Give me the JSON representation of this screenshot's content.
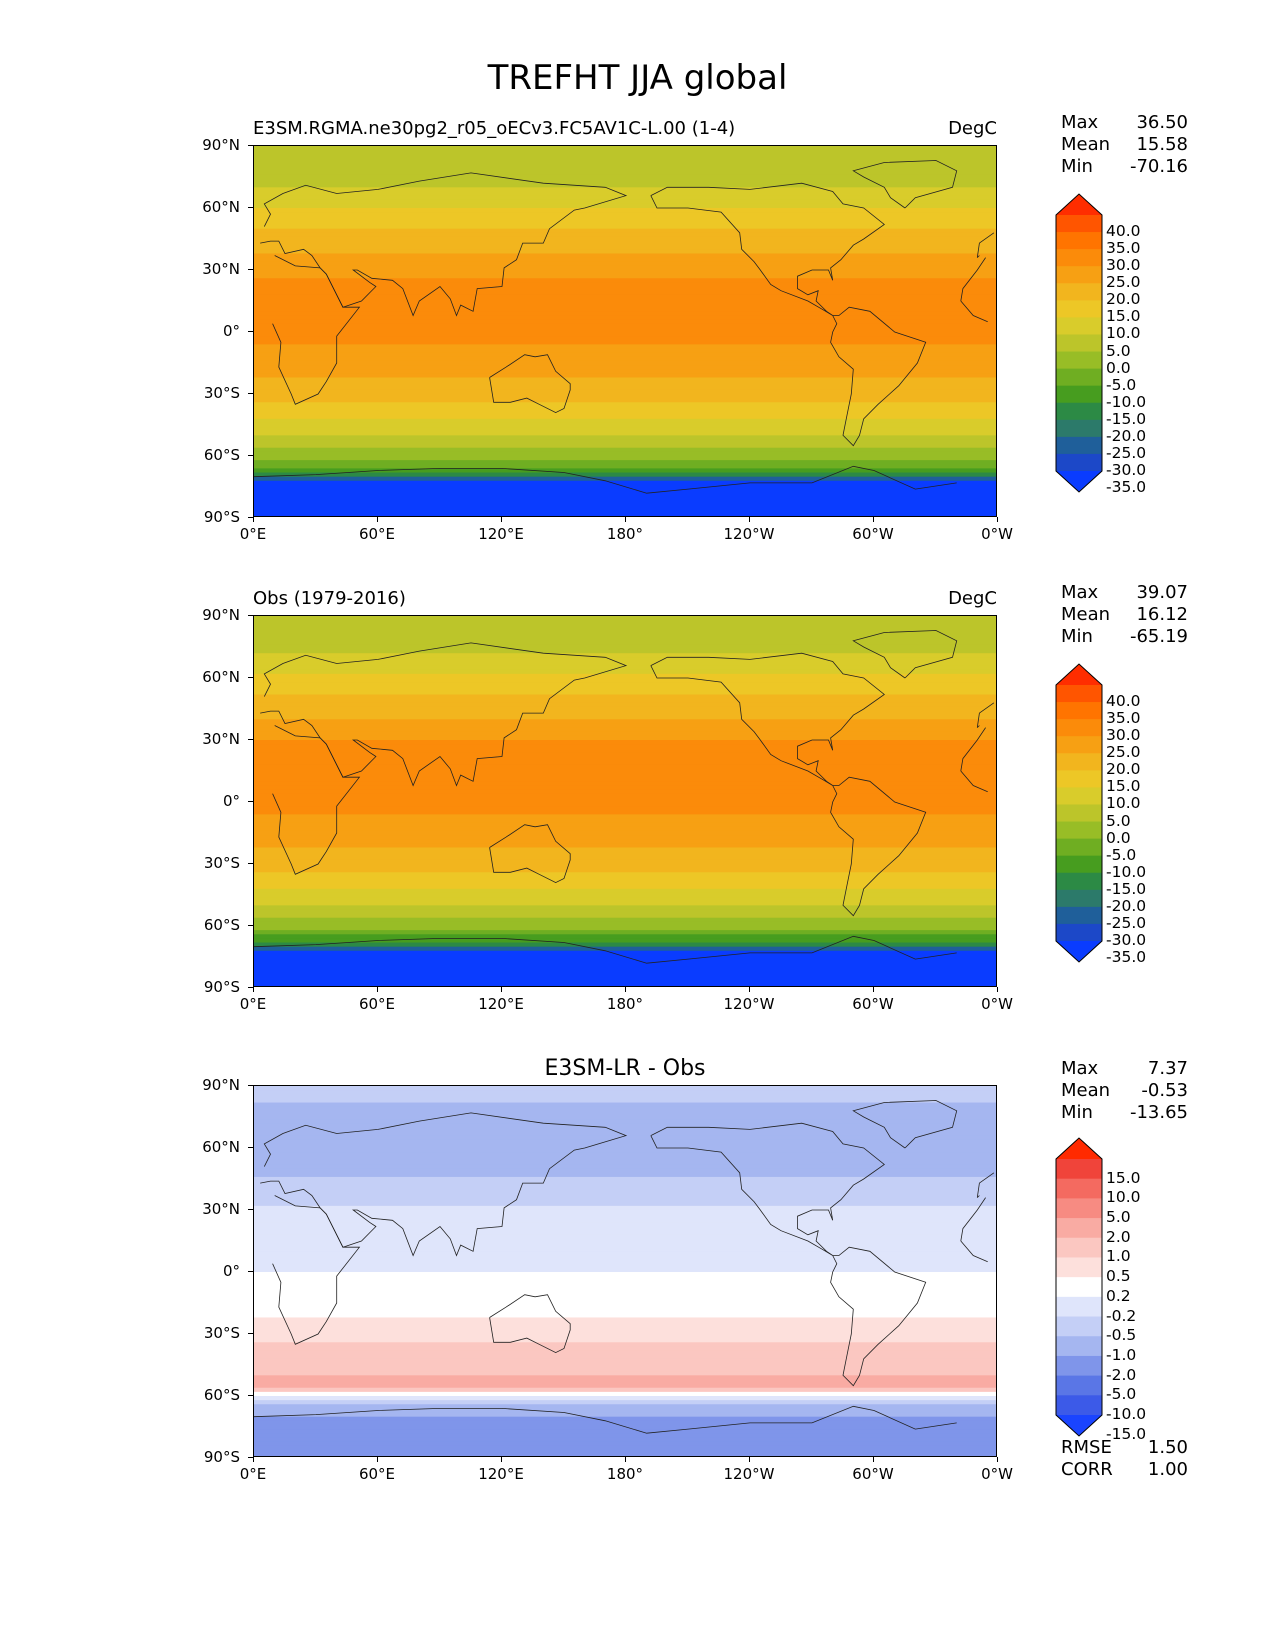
{
  "figure_title": "TREFHT JJA global",
  "chart_data": [
    {
      "type": "heatmap",
      "title_left": "E3SM.RGMA.ne30pg2_r05_oECv3.FC5AV1C-L.00 (1-4)",
      "title_right": "DegC",
      "xticks": [
        "0°E",
        "60°E",
        "120°E",
        "180°",
        "120°W",
        "60°W",
        "0°W"
      ],
      "yticks": [
        "90°N",
        "60°N",
        "30°N",
        "0°",
        "30°S",
        "60°S",
        "90°S"
      ],
      "xlim": [
        0,
        360
      ],
      "ylim": [
        -90,
        90
      ],
      "stats": {
        "max_label": "Max",
        "max": "36.50",
        "mean_label": "Mean",
        "mean": "15.58",
        "min_label": "Min",
        "min": "-70.16"
      },
      "colorbar_levels": [
        "40.0",
        "35.0",
        "30.0",
        "25.0",
        "20.0",
        "15.0",
        "10.0",
        "5.0",
        "0.0",
        "-5.0",
        "-10.0",
        "-15.0",
        "-20.0",
        "-25.0",
        "-30.0",
        "-35.0"
      ],
      "colorbar_colors": [
        "#ff2d00",
        "#ff5500",
        "#ff7400",
        "#fb8b0a",
        "#f7a013",
        "#f2b51e",
        "#edc726",
        "#d9cc2b",
        "#bcc52a",
        "#98bd26",
        "#6fae22",
        "#479d1f",
        "#2c8a45",
        "#2c7a6a",
        "#1f5f9a",
        "#1c48c8",
        "#0a3cff"
      ],
      "colorbar_extend": "both",
      "zonal_profile": [
        {
          "lat": 90,
          "value": 0
        },
        {
          "lat": 75,
          "value": 2
        },
        {
          "lat": 60,
          "value": 10
        },
        {
          "lat": 45,
          "value": 17
        },
        {
          "lat": 30,
          "value": 24
        },
        {
          "lat": 15,
          "value": 27
        },
        {
          "lat": 0,
          "value": 26
        },
        {
          "lat": -15,
          "value": 23
        },
        {
          "lat": -30,
          "value": 17
        },
        {
          "lat": -45,
          "value": 8
        },
        {
          "lat": -55,
          "value": 1
        },
        {
          "lat": -62,
          "value": -5
        },
        {
          "lat": -68,
          "value": -15
        },
        {
          "lat": -72,
          "value": -35
        },
        {
          "lat": -90,
          "value": -55
        }
      ]
    },
    {
      "type": "heatmap",
      "title_left": "Obs (1979-2016)",
      "title_right": "DegC",
      "xticks": [
        "0°E",
        "60°E",
        "120°E",
        "180°",
        "120°W",
        "60°W",
        "0°W"
      ],
      "yticks": [
        "90°N",
        "60°N",
        "30°N",
        "0°",
        "30°S",
        "60°S",
        "90°S"
      ],
      "xlim": [
        0,
        360
      ],
      "ylim": [
        -90,
        90
      ],
      "stats": {
        "max_label": "Max",
        "max": "39.07",
        "mean_label": "Mean",
        "mean": "16.12",
        "min_label": "Min",
        "min": "-65.19"
      },
      "colorbar_levels": [
        "40.0",
        "35.0",
        "30.0",
        "25.0",
        "20.0",
        "15.0",
        "10.0",
        "5.0",
        "0.0",
        "-5.0",
        "-10.0",
        "-15.0",
        "-20.0",
        "-25.0",
        "-30.0",
        "-35.0"
      ],
      "colorbar_colors": [
        "#ff2d00",
        "#ff5500",
        "#ff7400",
        "#fb8b0a",
        "#f7a013",
        "#f2b51e",
        "#edc726",
        "#d9cc2b",
        "#bcc52a",
        "#98bd26",
        "#6fae22",
        "#479d1f",
        "#2c8a45",
        "#2c7a6a",
        "#1f5f9a",
        "#1c48c8",
        "#0a3cff"
      ],
      "colorbar_extend": "both",
      "zonal_profile": [
        {
          "lat": 90,
          "value": 1
        },
        {
          "lat": 75,
          "value": 3
        },
        {
          "lat": 60,
          "value": 11
        },
        {
          "lat": 45,
          "value": 18
        },
        {
          "lat": 30,
          "value": 25
        },
        {
          "lat": 15,
          "value": 27
        },
        {
          "lat": 0,
          "value": 26
        },
        {
          "lat": -15,
          "value": 23
        },
        {
          "lat": -30,
          "value": 17
        },
        {
          "lat": -45,
          "value": 8
        },
        {
          "lat": -55,
          "value": 1
        },
        {
          "lat": -62,
          "value": -6
        },
        {
          "lat": -68,
          "value": -15
        },
        {
          "lat": -72,
          "value": -35
        },
        {
          "lat": -90,
          "value": -55
        }
      ]
    },
    {
      "type": "heatmap",
      "title_center": "E3SM-LR - Obs",
      "xticks": [
        "0°E",
        "60°E",
        "120°E",
        "180°",
        "120°W",
        "60°W",
        "0°W"
      ],
      "yticks": [
        "90°N",
        "60°N",
        "30°N",
        "0°",
        "30°S",
        "60°S",
        "90°S"
      ],
      "xlim": [
        0,
        360
      ],
      "ylim": [
        -90,
        90
      ],
      "stats": {
        "max_label": "Max",
        "max": "7.37",
        "mean_label": "Mean",
        "mean": "-0.53",
        "min_label": "Min",
        "min": "-13.65"
      },
      "metrics": {
        "rmse_label": "RMSE",
        "rmse": "1.50",
        "corr_label": "CORR",
        "corr": "1.00"
      },
      "colorbar_levels": [
        "15.0",
        "10.0",
        "5.0",
        "2.0",
        "1.0",
        "0.5",
        "0.2",
        "-0.2",
        "-0.5",
        "-1.0",
        "-2.0",
        "-5.0",
        "-10.0",
        "-15.0"
      ],
      "colorbar_colors": [
        "#ff2a00",
        "#f0443a",
        "#f46a60",
        "#f78b82",
        "#f9aba3",
        "#fbc7c1",
        "#fde0dc",
        "#ffffff",
        "#dfe5fb",
        "#c4cff6",
        "#a5b6f0",
        "#7f95ea",
        "#5a76e6",
        "#3c5ae8",
        "#1a44ff"
      ],
      "colorbar_extend": "both",
      "zonal_profile": [
        {
          "lat": 90,
          "value": -0.6
        },
        {
          "lat": 70,
          "value": -1.5
        },
        {
          "lat": 50,
          "value": -1.2
        },
        {
          "lat": 30,
          "value": -0.4
        },
        {
          "lat": 10,
          "value": -0.3
        },
        {
          "lat": -10,
          "value": -0.1
        },
        {
          "lat": -25,
          "value": 0.3
        },
        {
          "lat": -40,
          "value": 0.6
        },
        {
          "lat": -55,
          "value": 1.2
        },
        {
          "lat": -65,
          "value": -1.5
        },
        {
          "lat": -75,
          "value": -2.5
        },
        {
          "lat": -90,
          "value": -3
        }
      ]
    }
  ]
}
